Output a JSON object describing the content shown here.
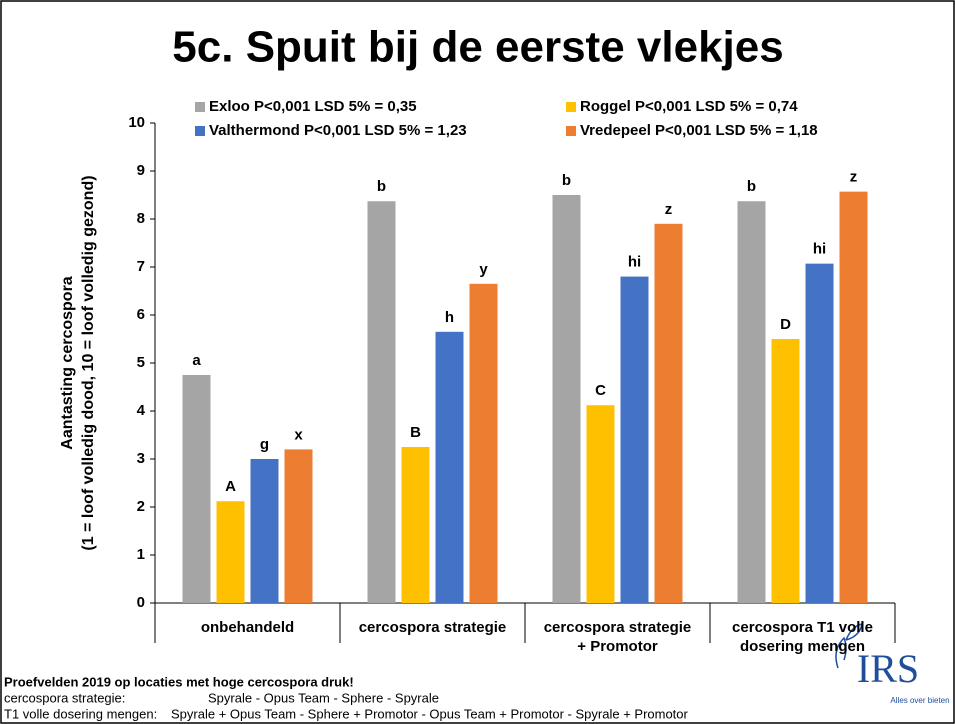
{
  "chart_data": {
    "type": "bar",
    "title": "5c. Spuit bij de eerste vlekjes",
    "y_label": [
      "Aantasting cercospora",
      "(1 = loof volledig dood, 10 = loof volledig gezond)"
    ],
    "categories": [
      [
        "onbehandeld"
      ],
      [
        "cercospora strategie"
      ],
      [
        "cercospora strategie",
        "+ Promotor"
      ],
      [
        "cercospora T1 volle",
        "dosering mengen"
      ]
    ],
    "series": [
      {
        "name": "Exloo P<0,001 LSD 5% = 0,35",
        "color": "#a5a5a5",
        "values": [
          4.75,
          8.37,
          8.5,
          8.37
        ],
        "letters": [
          "a",
          "b",
          "b",
          "b"
        ]
      },
      {
        "name": "Roggel P<0,001 LSD 5% = 0,74",
        "color": "#ffc000",
        "values": [
          2.12,
          3.25,
          4.12,
          5.5
        ],
        "letters": [
          "A",
          "B",
          "C",
          "D"
        ]
      },
      {
        "name": "Valthermond P<0,001 LSD 5% = 1,23",
        "color": "#4472c4",
        "values": [
          3.0,
          5.65,
          6.8,
          7.07
        ],
        "letters": [
          "g",
          "h",
          "hi",
          "hi"
        ]
      },
      {
        "name": "Vredepeel P<0,001 LSD 5% = 1,18",
        "color": "#ed7d31",
        "values": [
          3.2,
          6.65,
          7.9,
          8.57
        ],
        "letters": [
          "x",
          "y",
          "z",
          "z"
        ]
      }
    ],
    "ylim": [
      0,
      10
    ],
    "yticks": [
      0,
      1,
      2,
      3,
      4,
      5,
      6,
      7,
      8,
      9,
      10
    ],
    "grid": false
  },
  "footer": {
    "heading": "Proefvelden 2019 op locaties met hoge cercospora druk!",
    "lines": [
      [
        "cercospora strategie:",
        "Spyrale - Opus Team - Sphere - Spyrale"
      ],
      [
        "T1 volle dosering mengen:",
        "Spyrale + Opus Team - Sphere + Promotor - Opus Team + Promotor - Spyrale + Promotor"
      ]
    ]
  },
  "logo": {
    "name": "IRS",
    "tagline": "Alles over bieten"
  }
}
